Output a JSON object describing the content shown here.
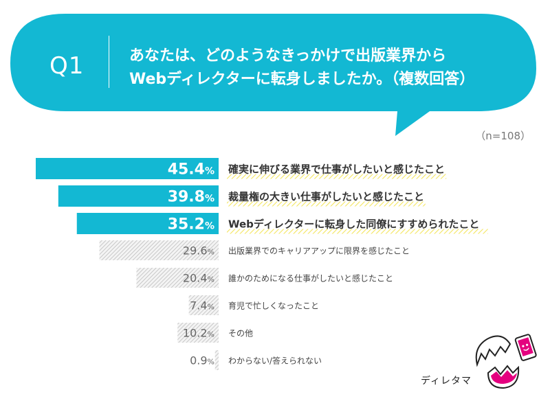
{
  "question": {
    "number": "Q1",
    "line1": "あなたは、どのようなきっかけで出版業界から",
    "line2": "Webディレクターに転身しましたか。（複数回答）"
  },
  "sample": "（n=108）",
  "colors": {
    "accent": "#13b8d3",
    "highlight": "#f3e55f",
    "hatch": "#c9c9c9",
    "text_dark": "#333333",
    "text_gray": "#666666"
  },
  "chart_data": {
    "type": "bar",
    "orientation": "horizontal",
    "value_unit": "%",
    "xlim": [
      0,
      50
    ],
    "grid": false,
    "categories": [
      "確実に伸びる業界で仕事がしたいと感じたこと",
      "裁量権の大きい仕事がしたいと感じたこと",
      "Webディレクターに転身した同僚にすすめられたこと",
      "出版業界でのキャリアアップに限界を感じたこと",
      "誰かのためになる仕事がしたいと感じたこと",
      "育児で忙しくなったこと",
      "その他",
      "わからない/答えられない"
    ],
    "values": [
      45.4,
      39.8,
      35.2,
      29.6,
      20.4,
      7.4,
      10.2,
      0.9
    ],
    "highlighted": [
      true,
      true,
      true,
      false,
      false,
      false,
      false,
      false
    ]
  },
  "logo": {
    "text": "ディレタマ",
    "icon": "cracked-egg-mascot-icon"
  }
}
